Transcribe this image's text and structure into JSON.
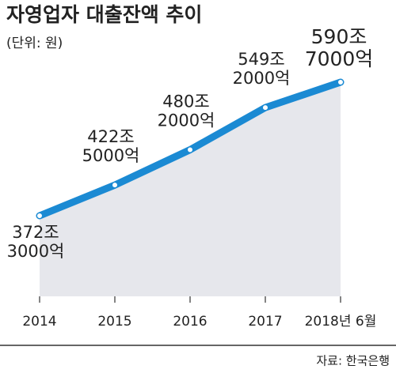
{
  "chart_data": {
    "type": "line",
    "title": "자영업자 대출잔액 추이",
    "subtitle": "(단위: 원)",
    "source": "자료: 한국은행",
    "categories": [
      "2014",
      "2015",
      "2016",
      "2017",
      "2018년 6월"
    ],
    "values": [
      372.3,
      422.5,
      480.2,
      549.2,
      590.7
    ],
    "value_labels": [
      [
        "372조",
        "3000억"
      ],
      [
        "422조",
        "5000억"
      ],
      [
        "480조",
        "2000억"
      ],
      [
        "549조",
        "2000억"
      ],
      [
        "590조",
        "7000억"
      ]
    ],
    "color": "#1b8ad3",
    "area_color": "#e6e7ec"
  }
}
